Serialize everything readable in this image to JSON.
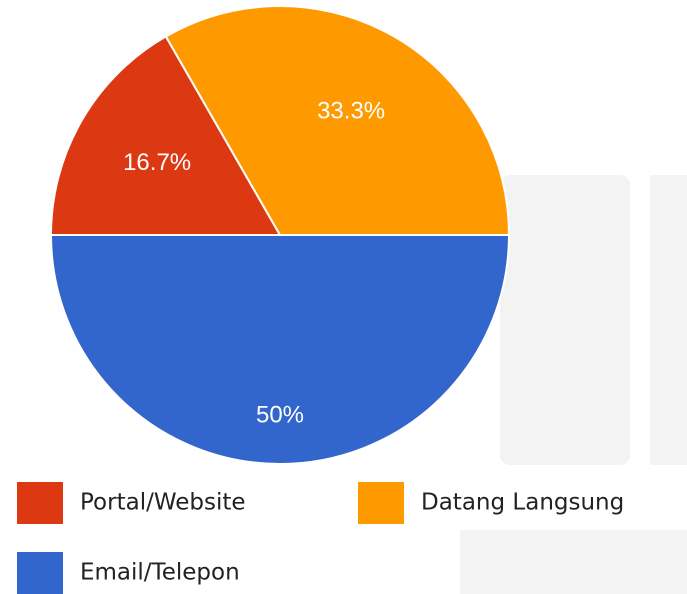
{
  "chart_data": {
    "type": "pie",
    "categories": [
      "Portal/Website",
      "Datang Langsung",
      "Email/Telepon"
    ],
    "values": [
      16.7,
      33.3,
      50
    ],
    "value_labels": [
      "16.7%",
      "33.3%",
      "50%"
    ],
    "colors": [
      "#dc3912",
      "#ff9900",
      "#3366cc"
    ],
    "legend": "bottom"
  }
}
